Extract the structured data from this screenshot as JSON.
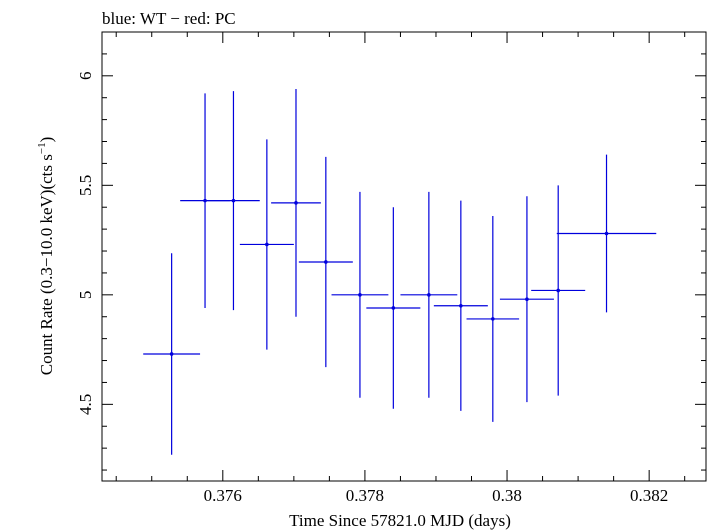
{
  "chart_data": {
    "type": "scatter",
    "title": "blue: WT − red: PC",
    "xlabel": "Time Since 57821.0 MJD (days)",
    "ylabel_main": "Count Rate (0.3−10.0 keV)(cts s",
    "ylabel_sup": "−1",
    "ylabel_close": ")",
    "xlim": [
      0.3743,
      0.3828
    ],
    "ylim": [
      4.15,
      6.2
    ],
    "x_major_ticks": [
      0.376,
      0.378,
      0.38,
      0.382
    ],
    "x_tick_labels": [
      "0.376",
      "0.378",
      "0.38",
      "0.382"
    ],
    "x_minor_step": 0.0005,
    "y_major_ticks": [
      4.5,
      5,
      5.5,
      6
    ],
    "y_tick_labels": [
      "4.5",
      "5",
      "5.5",
      "6"
    ],
    "y_minor_step": 0.1,
    "series": [
      {
        "name": "WT",
        "color": "#0000dd",
        "points": [
          {
            "x": 0.37528,
            "xerr": 0.0004,
            "y": 4.73,
            "yerr": 0.46
          },
          {
            "x": 0.37575,
            "xerr": 0.00035,
            "y": 5.43,
            "yerr": 0.49
          },
          {
            "x": 0.37615,
            "xerr": 0.00037,
            "y": 5.43,
            "yerr": 0.5
          },
          {
            "x": 0.37662,
            "xerr": 0.00038,
            "y": 5.23,
            "yerr": 0.48
          },
          {
            "x": 0.37703,
            "xerr": 0.00035,
            "y": 5.42,
            "yerr": 0.52
          },
          {
            "x": 0.37745,
            "xerr": 0.00038,
            "y": 5.15,
            "yerr": 0.48
          },
          {
            "x": 0.37793,
            "xerr": 0.0004,
            "y": 5.0,
            "yerr": 0.47
          },
          {
            "x": 0.3784,
            "xerr": 0.00038,
            "y": 4.94,
            "yerr": 0.46
          },
          {
            "x": 0.3789,
            "xerr": 0.0004,
            "y": 5.0,
            "yerr": 0.47
          },
          {
            "x": 0.37935,
            "xerr": 0.00038,
            "y": 4.95,
            "yerr": 0.48
          },
          {
            "x": 0.3798,
            "xerr": 0.00037,
            "y": 4.89,
            "yerr": 0.47
          },
          {
            "x": 0.38028,
            "xerr": 0.00038,
            "y": 4.98,
            "yerr": 0.47
          },
          {
            "x": 0.38072,
            "xerr": 0.00038,
            "y": 5.02,
            "yerr": 0.48
          },
          {
            "x": 0.3814,
            "xerr": 0.0007,
            "y": 5.28,
            "yerr": 0.36
          }
        ]
      }
    ]
  }
}
